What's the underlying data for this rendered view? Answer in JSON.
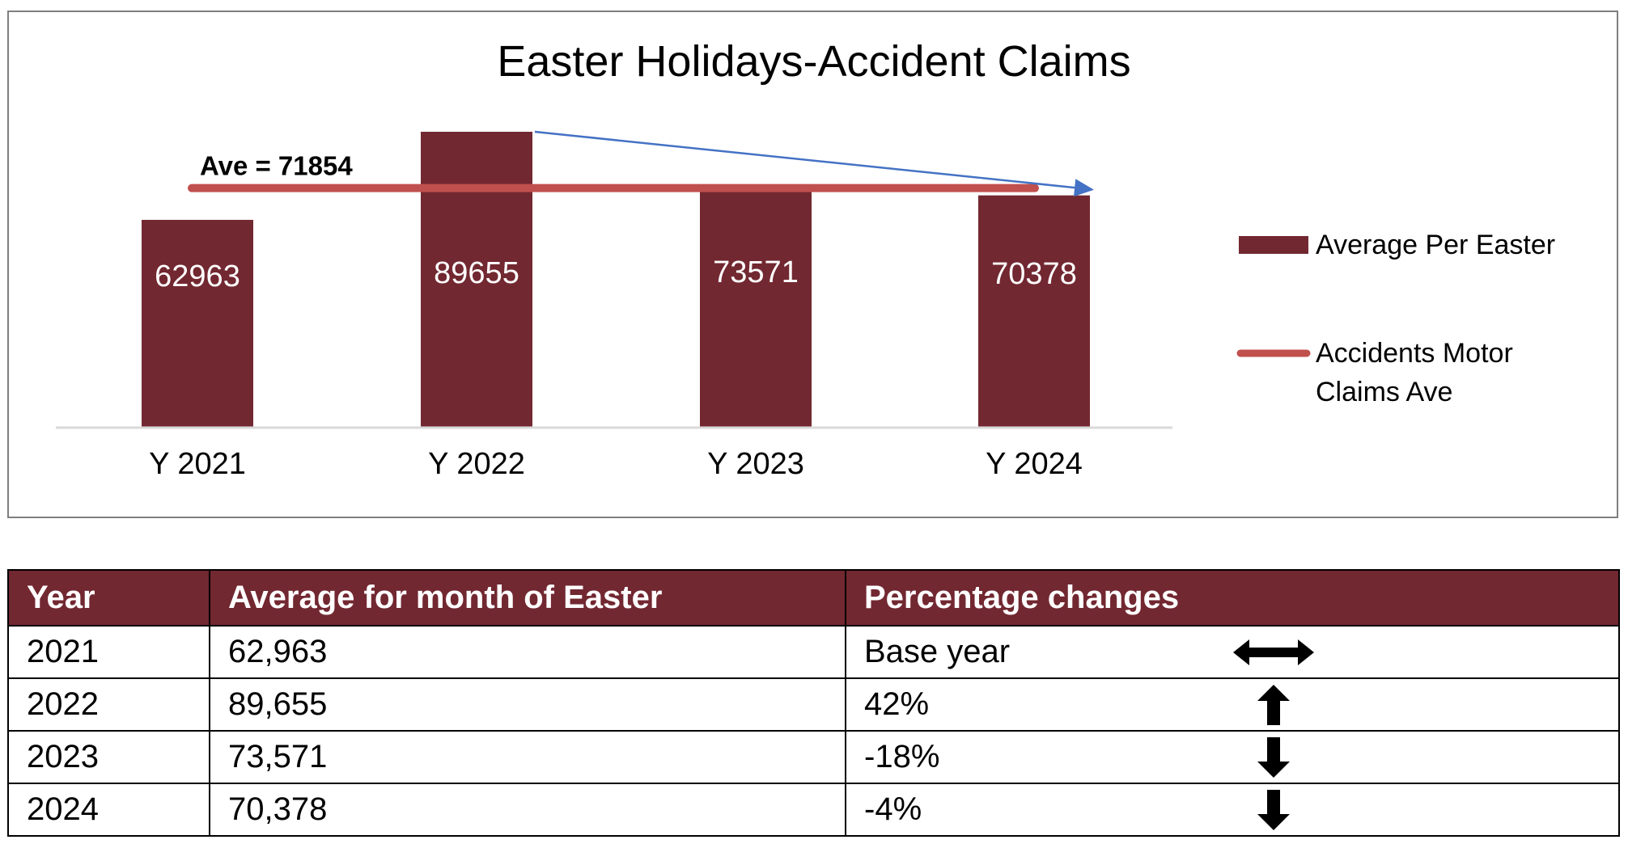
{
  "chart_data": {
    "type": "bar",
    "title": "Easter Holidays-Accident Claims",
    "categories": [
      "Y 2021",
      "Y 2022",
      "Y 2023",
      "Y 2024"
    ],
    "series": [
      {
        "name": "Average Per Easter",
        "values": [
          62963,
          89655,
          73571,
          70378
        ],
        "color": "#722831"
      }
    ],
    "average_line": {
      "name": "Accidents Motor Claims Ave",
      "value": 71854,
      "label": "Ave = 71854",
      "color": "#c0504d"
    },
    "trend_arrow": {
      "from": "Y 2022",
      "to": "Y 2024",
      "color": "#4472c4"
    },
    "ylim": [
      0,
      100000
    ],
    "xlabel": "",
    "ylabel": "",
    "grid": false,
    "legend_position": "right"
  },
  "legend": {
    "bar_label": "Average Per Easter",
    "line_label_line1": "Accidents Motor",
    "line_label_line2": "Claims Ave"
  },
  "table": {
    "headers": [
      "Year",
      "Average for month of Easter",
      "Percentage changes"
    ],
    "rows": [
      {
        "year": "2021",
        "average": "62,963",
        "change": "Base year",
        "icon": "left-right-arrow-icon"
      },
      {
        "year": "2022",
        "average": "89,655",
        "change": "42%",
        "icon": "up-arrow-icon"
      },
      {
        "year": "2023",
        "average": "73,571",
        "change": "-18%",
        "icon": "down-arrow-icon"
      },
      {
        "year": "2024",
        "average": "70,378",
        "change": "-4%",
        "icon": "down-arrow-icon"
      }
    ],
    "header_color": "#722831"
  }
}
